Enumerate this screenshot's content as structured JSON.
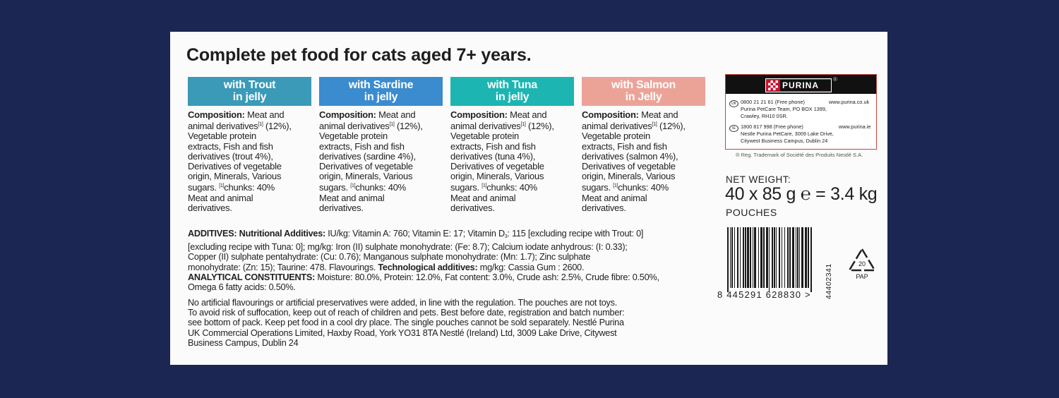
{
  "title": "Complete pet food for cats aged 7+ years.",
  "variants": [
    {
      "heading": [
        "with Trout",
        "in jelly"
      ],
      "color": "#3a9ab8",
      "composition": [
        [
          [
            "b",
            "Composition:"
          ],
          [
            "t",
            " Meat and"
          ]
        ],
        [
          [
            "t",
            "animal derivatives"
          ],
          [
            "s",
            "[1]"
          ],
          [
            "t",
            " (12%),"
          ]
        ],
        [
          [
            "t",
            "Vegetable protein"
          ]
        ],
        [
          [
            "t",
            "extracts, Fish and fish"
          ]
        ],
        [
          [
            "t",
            "derivatives (trout 4%),"
          ]
        ],
        [
          [
            "t",
            "Derivatives of vegetable"
          ]
        ],
        [
          [
            "t",
            "origin, Minerals, Various"
          ]
        ],
        [
          [
            "t",
            "sugars. "
          ],
          [
            "s",
            "[1]"
          ],
          [
            "t",
            "chunks: 40%"
          ]
        ],
        [
          [
            "t",
            "Meat and animal"
          ]
        ],
        [
          [
            "t",
            "derivatives."
          ]
        ]
      ]
    },
    {
      "heading": [
        "with Sardine",
        "in jelly"
      ],
      "color": "#3b8bcf",
      "composition": [
        [
          [
            "b",
            "Composition:"
          ],
          [
            "t",
            " Meat and"
          ]
        ],
        [
          [
            "t",
            "animal derivatives"
          ],
          [
            "s",
            "[1]"
          ],
          [
            "t",
            " (12%),"
          ]
        ],
        [
          [
            "t",
            "Vegetable protein"
          ]
        ],
        [
          [
            "t",
            "extracts, Fish and fish"
          ]
        ],
        [
          [
            "t",
            "derivatives (sardine 4%),"
          ]
        ],
        [
          [
            "t",
            "Derivatives of vegetable"
          ]
        ],
        [
          [
            "t",
            "origin, Minerals, Various"
          ]
        ],
        [
          [
            "t",
            "sugars. "
          ],
          [
            "s",
            "[1]"
          ],
          [
            "t",
            "chunks: 40%"
          ]
        ],
        [
          [
            "t",
            "Meat and animal"
          ]
        ],
        [
          [
            "t",
            "derivatives."
          ]
        ]
      ]
    },
    {
      "heading": [
        "with Tuna",
        "in jelly"
      ],
      "color": "#1db5b1",
      "composition": [
        [
          [
            "b",
            "Composition:"
          ],
          [
            "t",
            " Meat and"
          ]
        ],
        [
          [
            "t",
            "animal derivatives"
          ],
          [
            "s",
            "[1]"
          ],
          [
            "t",
            " (12%),"
          ]
        ],
        [
          [
            "t",
            "Vegetable protein"
          ]
        ],
        [
          [
            "t",
            "extracts, Fish and fish"
          ]
        ],
        [
          [
            "t",
            "derivatives (tuna 4%),"
          ]
        ],
        [
          [
            "t",
            "Derivatives of vegetable"
          ]
        ],
        [
          [
            "t",
            "origin, Minerals, Various"
          ]
        ],
        [
          [
            "t",
            "sugars. "
          ],
          [
            "s",
            "[1]"
          ],
          [
            "t",
            "chunks: 40%"
          ]
        ],
        [
          [
            "t",
            "Meat and animal"
          ]
        ],
        [
          [
            "t",
            "derivatives."
          ]
        ]
      ]
    },
    {
      "heading": [
        "with Salmon",
        "in Jelly"
      ],
      "color": "#eca397",
      "composition": [
        [
          [
            "b",
            "Composition:"
          ],
          [
            "t",
            " Meat and"
          ]
        ],
        [
          [
            "t",
            "animal derivatives"
          ],
          [
            "s",
            "[1]"
          ],
          [
            "t",
            " (12%),"
          ]
        ],
        [
          [
            "t",
            "Vegetable protein"
          ]
        ],
        [
          [
            "t",
            "extracts, Fish and fish"
          ]
        ],
        [
          [
            "t",
            "derivatives (salmon 4%),"
          ]
        ],
        [
          [
            "t",
            "Derivatives of vegetable"
          ]
        ],
        [
          [
            "t",
            "origin, Minerals, Various"
          ]
        ],
        [
          [
            "t",
            "sugars. "
          ],
          [
            "s",
            "[1]"
          ],
          [
            "t",
            "chunks: 40%"
          ]
        ],
        [
          [
            "t",
            "Meat and animal"
          ]
        ],
        [
          [
            "t",
            "derivatives."
          ]
        ]
      ]
    }
  ],
  "additives": [
    [
      [
        "b",
        "ADDITIVES: Nutritional Additives:"
      ],
      [
        "t",
        " IU/kg: Vitamin A: 760; Vitamin E: 17; Vitamin D"
      ],
      [
        "d",
        "3"
      ],
      [
        "t",
        ": 115 [excluding recipe with Trout: 0]"
      ]
    ],
    [
      [
        "t",
        "[excluding recipe with Tuna: 0]; mg/kg: Iron (II) sulphate monohydrate: (Fe: 8.7); Calcium iodate anhydrous: (I: 0.33);"
      ]
    ],
    [
      [
        "t",
        "Copper (II) sulphate pentahydrate: (Cu: 0.76); Manganous sulphate monohydrate: (Mn: 1.7); Zinc sulphate"
      ]
    ],
    [
      [
        "t",
        "monohydrate: (Zn: 15); Taurine: 478. Flavourings. "
      ],
      [
        "b",
        "Technological additives:"
      ],
      [
        "t",
        " mg/kg: Cassia Gum : 2600."
      ]
    ],
    [
      [
        "b",
        "ANALYTICAL CONSTITUENTS:"
      ],
      [
        "t",
        " Moisture: 80.0%, Protein: 12.0%, Fat content: 3.0%, Crude ash: 2.5%, Crude fibre: 0.50%,"
      ]
    ],
    [
      [
        "t",
        "Omega 6 fatty acids: 0.50%."
      ]
    ]
  ],
  "notice": [
    "No artificial flavourings or artificial preservatives were added, in line with the regulation. The pouches are not toys.",
    "To avoid risk of suffocation, keep out of reach of children and pets. Best before date, registration and batch number:",
    "see bottom of pack. Keep pet food in a cool dry place. The single pouches cannot be sold separately. Nestlé Purina",
    "UK Commercial Operations Limited, Haxby Road, York YO31 8TA Nestlé (Ireland) Ltd, 3009 Lake Drive, Citywest",
    "Business Campus, Dublin 24"
  ],
  "purina": {
    "logo": "PURINA",
    "reg_mark": "®",
    "uk": {
      "flag": "UK",
      "phone": "0800 21 21 61 (Free phone)",
      "web": "www.purina.co.uk",
      "addr1": "Purina PetCare Team, PO BOX 1399,",
      "addr2": "Crawley, RH10 0SR."
    },
    "ie": {
      "flag": "IE",
      "phone": "1800 817 998 (Free phone)",
      "web": "www.purina.ie",
      "addr1": "Nestle Purina PetCare, 3009 Lake Drive,",
      "addr2": "Citywest Business Campus, Dublin 24"
    },
    "trademark": "® Reg. Trademark of Société des Produits Nestlé S.A.",
    "brand_color": "#c8102e"
  },
  "net_weight": {
    "label": "NET WEIGHT:",
    "value": "40 x 85 g ℮ = 3.4 kg",
    "unit": "POUCHES"
  },
  "barcode": {
    "number": "8 445291 628830 >",
    "code": "44402341"
  },
  "recycle": {
    "number": "20",
    "label": "PAP"
  },
  "colors": {
    "background": "#1c2652",
    "panel": "#fbfbfb"
  }
}
